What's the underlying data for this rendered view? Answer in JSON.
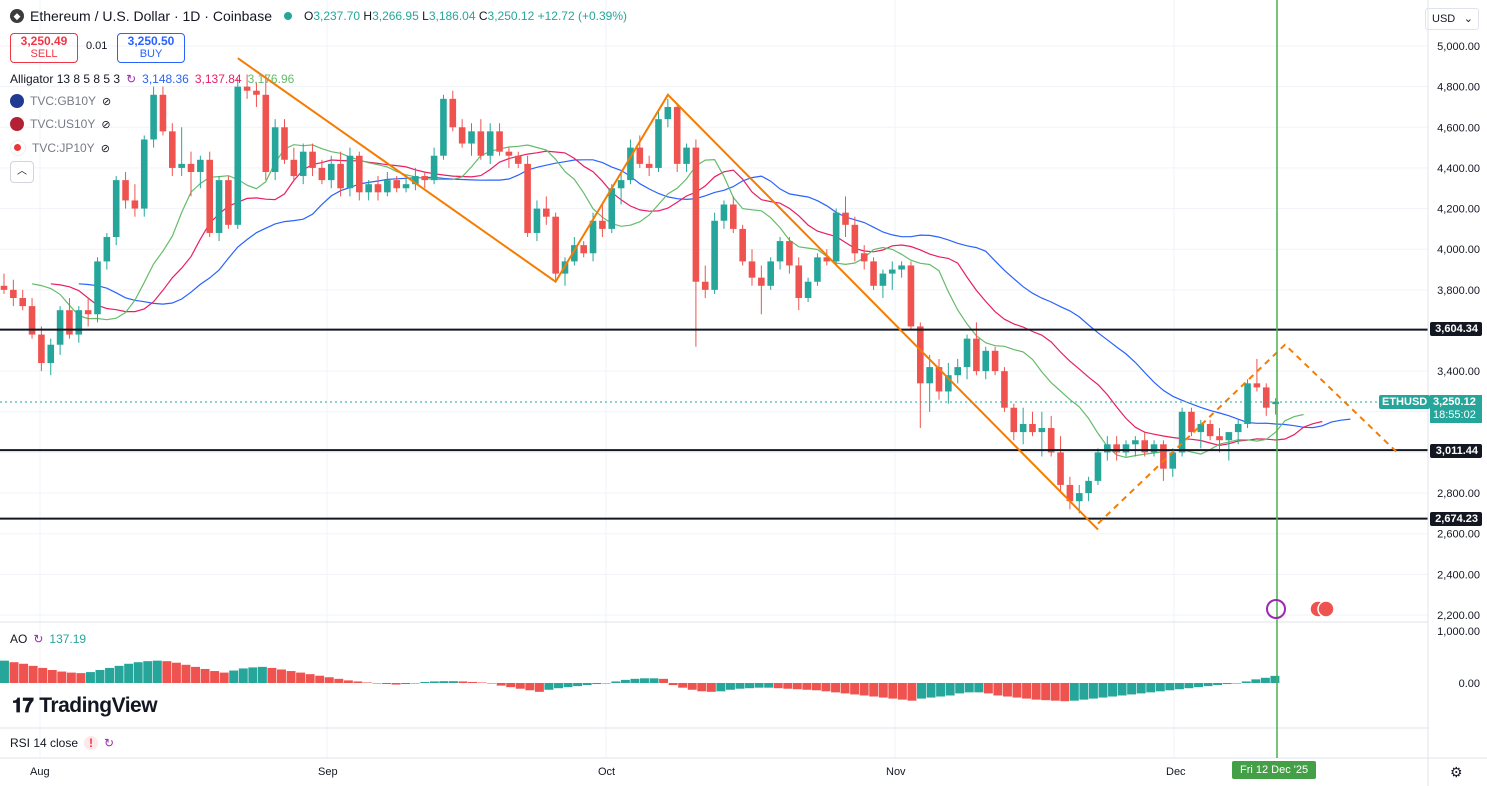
{
  "header": {
    "symbol_title": "Ethereum / U.S. Dollar · 1D · Coinbase",
    "open_label": "O",
    "open": "3,237.70",
    "high_label": "H",
    "high": "3,266.95",
    "low_label": "L",
    "low": "3,186.04",
    "close_label": "C",
    "close": "3,250.12",
    "change": "+12.72 (+0.39%)",
    "currency": "USD"
  },
  "trade": {
    "sell_price": "3,250.49",
    "sell_label": "SELL",
    "spread": "0.01",
    "buy_price": "3,250.50",
    "buy_label": "BUY"
  },
  "indicators": {
    "alligator_label": "Alligator 13 8 5 8 5 3",
    "alligator_jaw": "3,148.36",
    "alligator_teeth": "3,137.84",
    "alligator_lips": "3,176.96",
    "compare": [
      "TVC:GB10Y",
      "TVC:US10Y",
      "TVC:JP10Y"
    ],
    "ao_label": "AO",
    "ao_value": "137.19",
    "rsi_label": "RSI 14 close"
  },
  "price_axis": {
    "ticks": [
      "5,000.00",
      "4,800.00",
      "4,600.00",
      "4,400.00",
      "4,200.00",
      "4,000.00",
      "3,800.00",
      "3,600.00",
      "3,400.00",
      "3,200.00",
      "3,000.00",
      "2,800.00",
      "2,600.00",
      "2,400.00",
      "2,200.00"
    ],
    "ao_ticks": [
      "1,000.00",
      "0.00"
    ],
    "horizontal_levels": [
      "3,604.34",
      "3,011.44",
      "2,674.23"
    ],
    "current_symbol": "ETHUSD",
    "current_price": "3,250.12",
    "countdown": "18:55:02"
  },
  "time_axis": {
    "labels": [
      "Aug",
      "Sep",
      "Oct",
      "Nov",
      "Dec"
    ],
    "cursor_label": "Fri 12 Dec '25"
  },
  "branding": {
    "logo_text": "TradingView"
  },
  "colors": {
    "up": "#26a69a",
    "down": "#ef5350",
    "jaw": "#2962ff",
    "teeth": "#e91e63",
    "lips": "#66bb6a",
    "pattern": "#f57c00",
    "cursor": "#4caf50"
  },
  "chart_data": {
    "type": "candlestick",
    "title": "Ethereum / U.S. Dollar · 1D · Coinbase",
    "ylim": [
      2200,
      5000
    ],
    "candles": [
      [
        3820,
        3880,
        3780,
        3800
      ],
      [
        3800,
        3850,
        3720,
        3760
      ],
      [
        3760,
        3800,
        3700,
        3720
      ],
      [
        3720,
        3760,
        3560,
        3580
      ],
      [
        3580,
        3620,
        3400,
        3440
      ],
      [
        3440,
        3560,
        3380,
        3530
      ],
      [
        3530,
        3720,
        3480,
        3700
      ],
      [
        3700,
        3760,
        3560,
        3580
      ],
      [
        3580,
        3720,
        3540,
        3700
      ],
      [
        3700,
        3760,
        3620,
        3680
      ],
      [
        3680,
        3960,
        3640,
        3940
      ],
      [
        3940,
        4080,
        3900,
        4060
      ],
      [
        4060,
        4360,
        4020,
        4340
      ],
      [
        4340,
        4380,
        4200,
        4240
      ],
      [
        4240,
        4320,
        4160,
        4200
      ],
      [
        4200,
        4560,
        4160,
        4540
      ],
      [
        4540,
        4800,
        4500,
        4760
      ],
      [
        4760,
        4800,
        4560,
        4580
      ],
      [
        4580,
        4620,
        4360,
        4400
      ],
      [
        4400,
        4600,
        4360,
        4420
      ],
      [
        4420,
        4480,
        4260,
        4380
      ],
      [
        4380,
        4460,
        4300,
        4440
      ],
      [
        4440,
        4480,
        4060,
        4080
      ],
      [
        4080,
        4360,
        4040,
        4340
      ],
      [
        4340,
        4360,
        4100,
        4120
      ],
      [
        4120,
        4840,
        4100,
        4800
      ],
      [
        4800,
        4860,
        4740,
        4780
      ],
      [
        4780,
        4820,
        4700,
        4760
      ],
      [
        4760,
        4860,
        4340,
        4380
      ],
      [
        4380,
        4640,
        4340,
        4600
      ],
      [
        4600,
        4640,
        4420,
        4440
      ],
      [
        4440,
        4500,
        4340,
        4360
      ],
      [
        4360,
        4520,
        4320,
        4480
      ],
      [
        4480,
        4520,
        4360,
        4400
      ],
      [
        4400,
        4440,
        4320,
        4340
      ],
      [
        4340,
        4460,
        4300,
        4420
      ],
      [
        4420,
        4480,
        4260,
        4300
      ],
      [
        4300,
        4500,
        4260,
        4460
      ],
      [
        4460,
        4480,
        4240,
        4280
      ],
      [
        4280,
        4340,
        4240,
        4320
      ],
      [
        4320,
        4360,
        4240,
        4280
      ],
      [
        4280,
        4380,
        4260,
        4340
      ],
      [
        4340,
        4360,
        4280,
        4300
      ],
      [
        4300,
        4360,
        4280,
        4320
      ],
      [
        4320,
        4400,
        4290,
        4360
      ],
      [
        4360,
        4380,
        4300,
        4340
      ],
      [
        4340,
        4500,
        4320,
        4460
      ],
      [
        4460,
        4760,
        4440,
        4740
      ],
      [
        4740,
        4780,
        4580,
        4600
      ],
      [
        4600,
        4640,
        4500,
        4520
      ],
      [
        4520,
        4620,
        4460,
        4580
      ],
      [
        4580,
        4640,
        4440,
        4460
      ],
      [
        4460,
        4620,
        4420,
        4580
      ],
      [
        4580,
        4620,
        4460,
        4480
      ],
      [
        4480,
        4500,
        4400,
        4460
      ],
      [
        4460,
        4480,
        4400,
        4420
      ],
      [
        4420,
        4460,
        4060,
        4080
      ],
      [
        4080,
        4240,
        4040,
        4200
      ],
      [
        4200,
        4260,
        4120,
        4160
      ],
      [
        4160,
        4180,
        3840,
        3880
      ],
      [
        3880,
        3960,
        3820,
        3940
      ],
      [
        3940,
        4060,
        3920,
        4020
      ],
      [
        4020,
        4040,
        3960,
        3980
      ],
      [
        3980,
        4180,
        3940,
        4140
      ],
      [
        4140,
        4220,
        4060,
        4100
      ],
      [
        4100,
        4320,
        4080,
        4300
      ],
      [
        4300,
        4380,
        4220,
        4340
      ],
      [
        4340,
        4540,
        4320,
        4500
      ],
      [
        4500,
        4560,
        4400,
        4420
      ],
      [
        4420,
        4460,
        4360,
        4400
      ],
      [
        4400,
        4680,
        4380,
        4640
      ],
      [
        4640,
        4740,
        4600,
        4700
      ],
      [
        4700,
        4720,
        4380,
        4420
      ],
      [
        4420,
        4520,
        4380,
        4500
      ],
      [
        4500,
        4540,
        3520,
        3840
      ],
      [
        3840,
        3920,
        3760,
        3800
      ],
      [
        3800,
        4180,
        3780,
        4140
      ],
      [
        4140,
        4240,
        4100,
        4220
      ],
      [
        4220,
        4260,
        4080,
        4100
      ],
      [
        4100,
        4120,
        3920,
        3940
      ],
      [
        3940,
        4000,
        3820,
        3860
      ],
      [
        3860,
        3920,
        3680,
        3820
      ],
      [
        3820,
        3960,
        3800,
        3940
      ],
      [
        3940,
        4060,
        3900,
        4040
      ],
      [
        4040,
        4060,
        3880,
        3920
      ],
      [
        3920,
        3960,
        3700,
        3760
      ],
      [
        3760,
        3860,
        3740,
        3840
      ],
      [
        3840,
        3980,
        3820,
        3960
      ],
      [
        3960,
        4000,
        3920,
        3940
      ],
      [
        3940,
        4200,
        3920,
        4180
      ],
      [
        4180,
        4260,
        4060,
        4120
      ],
      [
        4120,
        4160,
        3940,
        3980
      ],
      [
        3980,
        4020,
        3900,
        3940
      ],
      [
        3940,
        3960,
        3800,
        3820
      ],
      [
        3820,
        3900,
        3760,
        3880
      ],
      [
        3880,
        3940,
        3800,
        3900
      ],
      [
        3900,
        3940,
        3860,
        3920
      ],
      [
        3920,
        3940,
        3600,
        3620
      ],
      [
        3620,
        3640,
        3120,
        3340
      ],
      [
        3340,
        3480,
        3200,
        3420
      ],
      [
        3420,
        3460,
        3260,
        3300
      ],
      [
        3300,
        3440,
        3240,
        3380
      ],
      [
        3380,
        3460,
        3340,
        3420
      ],
      [
        3420,
        3580,
        3360,
        3560
      ],
      [
        3560,
        3640,
        3380,
        3400
      ],
      [
        3400,
        3520,
        3360,
        3500
      ],
      [
        3500,
        3520,
        3380,
        3400
      ],
      [
        3400,
        3420,
        3200,
        3220
      ],
      [
        3220,
        3240,
        3060,
        3100
      ],
      [
        3100,
        3220,
        3040,
        3140
      ],
      [
        3140,
        3200,
        3080,
        3100
      ],
      [
        3100,
        3200,
        2980,
        3120
      ],
      [
        3120,
        3180,
        2980,
        3000
      ],
      [
        3000,
        3080,
        2800,
        2840
      ],
      [
        2840,
        2880,
        2720,
        2760
      ],
      [
        2760,
        2840,
        2700,
        2800
      ],
      [
        2800,
        2880,
        2760,
        2860
      ],
      [
        2860,
        3020,
        2840,
        3000
      ],
      [
        3000,
        3080,
        2960,
        3040
      ],
      [
        3040,
        3080,
        2960,
        3000
      ],
      [
        3000,
        3060,
        2980,
        3040
      ],
      [
        3040,
        3080,
        2980,
        3060
      ],
      [
        3060,
        3100,
        2980,
        3000
      ],
      [
        3000,
        3060,
        2980,
        3040
      ],
      [
        3040,
        3060,
        2860,
        2920
      ],
      [
        2920,
        3020,
        2880,
        3000
      ],
      [
        3000,
        3220,
        2980,
        3200
      ],
      [
        3200,
        3220,
        3080,
        3100
      ],
      [
        3100,
        3160,
        3020,
        3140
      ],
      [
        3140,
        3160,
        3060,
        3080
      ],
      [
        3080,
        3120,
        3000,
        3060
      ],
      [
        3060,
        3100,
        2960,
        3100
      ],
      [
        3100,
        3160,
        3040,
        3140
      ],
      [
        3140,
        3360,
        3120,
        3340
      ],
      [
        3340,
        3460,
        3300,
        3320
      ],
      [
        3320,
        3340,
        3180,
        3220
      ],
      [
        3237.7,
        3266.95,
        3186.04,
        3250.12
      ]
    ],
    "ao": [
      430,
      400,
      370,
      330,
      290,
      250,
      220,
      200,
      190,
      210,
      250,
      290,
      330,
      370,
      400,
      420,
      430,
      420,
      390,
      350,
      310,
      270,
      230,
      200,
      240,
      280,
      300,
      310,
      290,
      260,
      230,
      200,
      170,
      140,
      110,
      80,
      50,
      30,
      10,
      -10,
      -20,
      -30,
      -20,
      0,
      20,
      30,
      35,
      35,
      30,
      20,
      10,
      -10,
      -50,
      -80,
      -110,
      -140,
      -170,
      -130,
      -100,
      -80,
      -60,
      -40,
      -20,
      0,
      30,
      60,
      80,
      90,
      90,
      80,
      -40,
      -90,
      -130,
      -160,
      -170,
      -160,
      -130,
      -110,
      -100,
      -90,
      -90,
      -100,
      -110,
      -120,
      -130,
      -140,
      -160,
      -180,
      -200,
      -220,
      -240,
      -260,
      -280,
      -300,
      -320,
      -340,
      -300,
      -280,
      -260,
      -240,
      -200,
      -180,
      -180,
      -200,
      -240,
      -260,
      -280,
      -300,
      -320,
      -330,
      -340,
      -350,
      -340,
      -320,
      -300,
      -280,
      -260,
      -240,
      -220,
      -200,
      -180,
      -160,
      -140,
      -120,
      -100,
      -80,
      -60,
      -40,
      -20,
      0,
      30,
      70,
      100,
      137.19
    ],
    "alligator": {
      "jaw_series_name": "Alligator jaw",
      "teeth_series_name": "Alligator teeth",
      "lips_series_name": "Alligator lips"
    },
    "horizontal_levels": [
      3604.34,
      3011.44,
      2674.23
    ],
    "pattern_points": [
      {
        "i": 25,
        "price": 4940
      },
      {
        "i": 59,
        "price": 3840
      },
      {
        "i": 71,
        "price": 4760
      },
      {
        "i": 117,
        "price": 2620
      }
    ],
    "dashed_pattern_points": [
      {
        "i": 117,
        "price": 2650
      },
      {
        "i": 137,
        "price": 3530
      },
      {
        "i": 149,
        "price": 3000
      }
    ]
  }
}
